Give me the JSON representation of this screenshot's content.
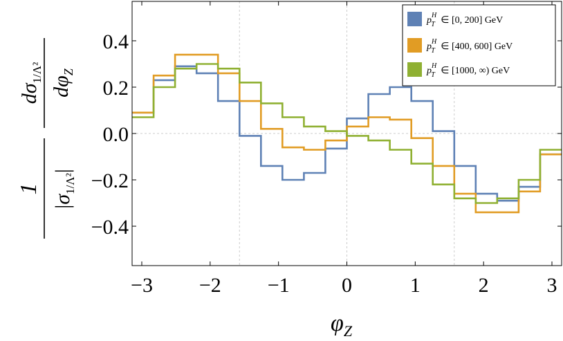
{
  "chart_data": {
    "type": "line",
    "step": true,
    "xlabel": "φ",
    "xlabel_sub": "Z",
    "ylabel": {
      "prefactor_num": "1",
      "prefactor_den_sym": "σ",
      "prefactor_den_sub": "1/Λ²",
      "deriv_num_d": "d",
      "deriv_num_sym": "σ",
      "deriv_num_sub": "1/Λ²",
      "deriv_den_d": "d",
      "deriv_den_sym": "φ",
      "deriv_den_sub": "Z"
    },
    "xlim": [
      -3.1416,
      3.1416
    ],
    "ylim": [
      -0.57,
      0.57
    ],
    "x_ticks": [
      -3,
      -2,
      -1,
      0,
      1,
      2,
      3
    ],
    "x_tick_labels": [
      "−3",
      "−2",
      "−1",
      "0",
      "1",
      "2",
      "3"
    ],
    "y_ticks": [
      -0.4,
      -0.2,
      0.0,
      0.2,
      0.4
    ],
    "y_tick_labels": [
      "−0.4",
      "−0.2",
      "0.0",
      "0.2",
      "0.4"
    ],
    "grid": "dashed reference lines at x = −π/2, 0, π/2 and y = 0",
    "legend_position": "top-right",
    "bin_edges": [
      -3.1416,
      -2.8274,
      -2.5133,
      -2.1991,
      -1.885,
      -1.5708,
      -1.2566,
      -0.9425,
      -0.6283,
      -0.3142,
      0,
      0.3142,
      0.6283,
      0.9425,
      1.2566,
      1.5708,
      1.885,
      2.1991,
      2.5133,
      2.8274,
      3.1416
    ],
    "series": [
      {
        "name": "p_T^H ∈ [0, 200] GeV",
        "legend_parts": [
          "[0, 200] GeV"
        ],
        "color": "#5e81b5",
        "values": [
          0.09,
          0.23,
          0.29,
          0.26,
          0.14,
          -0.01,
          -0.14,
          -0.2,
          -0.17,
          -0.065,
          0.065,
          0.17,
          0.2,
          0.14,
          0.01,
          -0.14,
          -0.26,
          -0.29,
          -0.23,
          -0.09
        ]
      },
      {
        "name": "p_T^H ∈ [400, 600] GeV",
        "legend_parts": [
          "[400, 600] GeV"
        ],
        "color": "#e19c24",
        "values": [
          0.09,
          0.25,
          0.34,
          0.34,
          0.26,
          0.14,
          0.02,
          -0.06,
          -0.07,
          -0.03,
          0.03,
          0.07,
          0.06,
          -0.02,
          -0.14,
          -0.26,
          -0.34,
          -0.34,
          -0.25,
          -0.09
        ]
      },
      {
        "name": "p_T^H ∈ [1000, ∞) GeV",
        "legend_parts": [
          "[1000, ∞) GeV"
        ],
        "color": "#8fb032",
        "values": [
          0.07,
          0.2,
          0.28,
          0.3,
          0.28,
          0.22,
          0.13,
          0.07,
          0.03,
          0.01,
          -0.01,
          -0.03,
          -0.07,
          -0.13,
          -0.22,
          -0.28,
          -0.3,
          -0.28,
          -0.2,
          -0.07
        ]
      }
    ],
    "legend_prefix": {
      "p": "p",
      "sup": "H",
      "sub": "T",
      "relation": "∈"
    }
  }
}
